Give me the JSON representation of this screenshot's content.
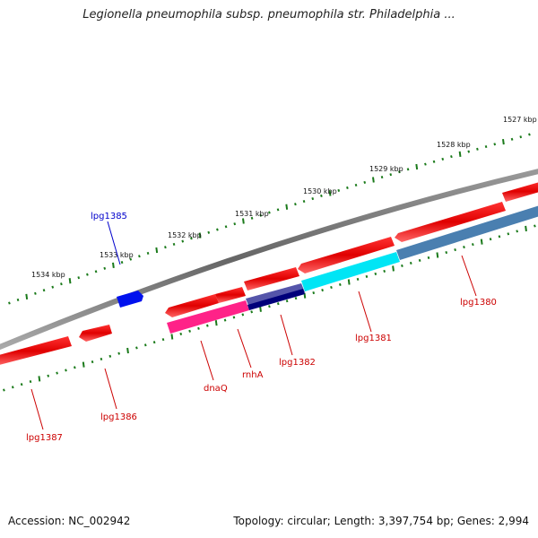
{
  "header": {
    "title": "Legionella pneumophila subsp. pneumophila str. Philadelphia ..."
  },
  "footer": {
    "accession": "Accession: NC_002942",
    "summary": "Topology: circular; Length: 3,397,754 bp; Genes: 2,994"
  },
  "map": {
    "kbp_labels": [
      "1527 kbp",
      "1528 kbp",
      "1529 kbp",
      "1530 kbp",
      "1531 kbp",
      "1532 kbp",
      "1533 kbp",
      "1534 kbp"
    ],
    "genes": [
      {
        "name": "lpg1380",
        "color": "#cc0000"
      },
      {
        "name": "lpg1381",
        "color": "#cc0000"
      },
      {
        "name": "lpg1382",
        "color": "#cc0000"
      },
      {
        "name": "rnhA",
        "color": "#cc0000"
      },
      {
        "name": "dnaQ",
        "color": "#cc0000"
      },
      {
        "name": "lpg1385",
        "color": "#0000cc"
      },
      {
        "name": "lpg1386",
        "color": "#cc0000"
      },
      {
        "name": "lpg1387",
        "color": "#cc0000"
      }
    ]
  }
}
